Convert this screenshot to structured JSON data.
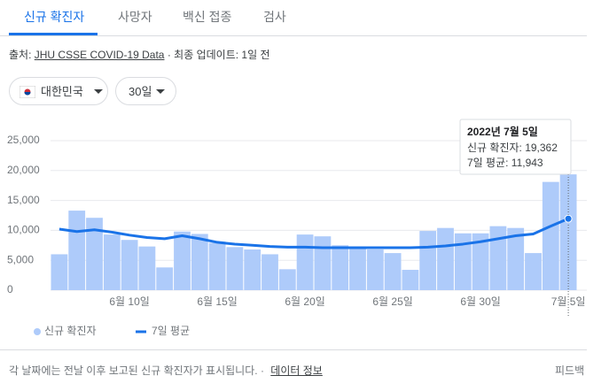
{
  "tabs": [
    "신규 확진자",
    "사망자",
    "백신 접종",
    "검사"
  ],
  "source": {
    "prefix": "출처:",
    "link": "JHU CSSE COVID-19 Data",
    "suffix": "· 최종 업데이트: 1일 전"
  },
  "filters": [
    "대한민국",
    "30일"
  ],
  "chart_data": {
    "type": "bar",
    "categories": [
      null,
      null,
      null,
      null,
      "6월 10일",
      null,
      null,
      null,
      null,
      "6월 15일",
      null,
      null,
      null,
      null,
      "6월 20일",
      null,
      null,
      null,
      null,
      "6월 25일",
      null,
      null,
      null,
      null,
      "6월 30일",
      null,
      null,
      null,
      null,
      "7월 5일"
    ],
    "series": [
      {
        "name": "신규 확진자",
        "type": "bar",
        "color": "#aecbfa",
        "values": [
          6000,
          13300,
          12100,
          9300,
          8400,
          7300,
          3800,
          9800,
          9400,
          7900,
          7200,
          6800,
          6000,
          3500,
          9300,
          9000,
          7500,
          7000,
          6800,
          6200,
          3400,
          9900,
          10400,
          9500,
          9500,
          10700,
          10400,
          6200,
          18100,
          19362
        ]
      },
      {
        "name": "7일 평균",
        "type": "line",
        "color": "#1a73e8",
        "values": [
          10200,
          9800,
          10100,
          9700,
          9200,
          8800,
          8600,
          9100,
          8600,
          8000,
          7700,
          7500,
          7300,
          7200,
          7200,
          7100,
          7100,
          7100,
          7100,
          7100,
          7100,
          7200,
          7400,
          7700,
          8100,
          8600,
          9100,
          9400,
          10700,
          11943
        ]
      }
    ],
    "ylim": [
      0,
      25000
    ],
    "yticks": [
      0,
      {
        "value": 5000,
        "label": "5,000"
      },
      {
        "value": 10000,
        "label": "10,000"
      },
      {
        "value": 15000,
        "label": "15,000"
      },
      {
        "value": 20000,
        "label": "20,000"
      },
      {
        "value": 25000,
        "label": "25,000"
      }
    ],
    "grid": true,
    "tooltip": {
      "title": "2022년 7월 5일",
      "lines": [
        "신규 확진자: 19,362",
        "7일 평균: 11,943"
      ]
    }
  },
  "footer": {
    "note": "각 날짜에는 전날 이후 보고된 신규 확진자가 표시됩니다.",
    "link": "데이터 정보",
    "feedback": "피드백"
  }
}
